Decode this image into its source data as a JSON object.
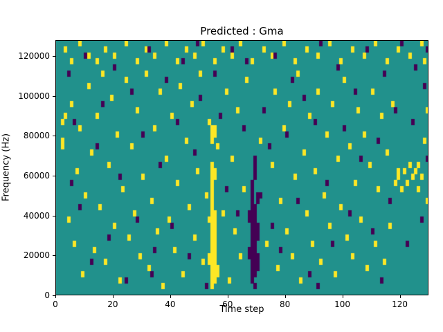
{
  "chart_data": {
    "type": "heatmap",
    "title": "Predicted : Gma",
    "xlabel": "Time step",
    "ylabel": "Frequency (Hz)",
    "x_range": [
      0,
      130
    ],
    "y_range": [
      0,
      128000
    ],
    "x_ticks": [
      0,
      20,
      40,
      60,
      80,
      100,
      120
    ],
    "y_ticks": [
      0,
      20000,
      40000,
      60000,
      80000,
      100000,
      120000
    ],
    "grid": {
      "cols": 130,
      "rows": 42
    },
    "legend": "none",
    "colormap": {
      "name": "viridis-discrete",
      "background": "#21918c",
      "low": "#440154",
      "high": "#fde725"
    },
    "cells": {
      "yellow": [
        [
          54,
          1
        ],
        [
          54,
          2
        ],
        [
          54,
          3
        ],
        [
          54,
          4
        ],
        [
          54,
          5
        ],
        [
          54,
          6
        ],
        [
          54,
          7
        ],
        [
          54,
          8
        ],
        [
          54,
          9
        ],
        [
          54,
          10
        ],
        [
          54,
          11
        ],
        [
          54,
          12
        ],
        [
          54,
          13
        ],
        [
          54,
          14
        ],
        [
          54,
          15
        ],
        [
          54,
          16
        ],
        [
          54,
          17
        ],
        [
          54,
          18
        ],
        [
          54,
          19
        ],
        [
          54,
          20
        ],
        [
          54,
          21
        ],
        [
          54,
          25
        ],
        [
          54,
          26
        ],
        [
          54,
          27
        ],
        [
          55,
          2
        ],
        [
          55,
          3
        ],
        [
          55,
          4
        ],
        [
          55,
          5
        ],
        [
          55,
          6
        ],
        [
          55,
          7
        ],
        [
          55,
          8
        ],
        [
          55,
          9
        ],
        [
          55,
          10
        ],
        [
          55,
          11
        ],
        [
          55,
          12
        ],
        [
          55,
          13
        ],
        [
          55,
          19
        ],
        [
          55,
          20
        ],
        [
          55,
          26
        ],
        [
          55,
          27
        ],
        [
          53,
          5
        ],
        [
          53,
          6
        ],
        [
          53,
          12
        ],
        [
          56,
          3
        ],
        [
          56,
          4
        ],
        [
          3,
          40
        ],
        [
          5,
          38
        ],
        [
          8,
          41
        ],
        [
          11,
          39
        ],
        [
          14,
          38
        ],
        [
          17,
          40
        ],
        [
          20,
          39
        ],
        [
          24,
          41
        ],
        [
          28,
          38
        ],
        [
          31,
          40
        ],
        [
          34,
          39
        ],
        [
          38,
          41
        ],
        [
          42,
          38
        ],
        [
          45,
          40
        ],
        [
          48,
          39
        ],
        [
          51,
          41
        ],
        [
          55,
          38
        ],
        [
          58,
          40
        ],
        [
          61,
          39
        ],
        [
          64,
          41
        ],
        [
          68,
          38
        ],
        [
          72,
          40
        ],
        [
          75,
          39
        ],
        [
          79,
          41
        ],
        [
          83,
          38
        ],
        [
          87,
          40
        ],
        [
          91,
          39
        ],
        [
          95,
          41
        ],
        [
          99,
          38
        ],
        [
          103,
          40
        ],
        [
          107,
          39
        ],
        [
          111,
          41
        ],
        [
          115,
          38
        ],
        [
          119,
          40
        ],
        [
          123,
          39
        ],
        [
          127,
          41
        ],
        [
          128,
          38
        ],
        [
          2,
          24
        ],
        [
          2,
          25
        ],
        [
          2,
          28
        ],
        [
          3,
          29
        ],
        [
          4,
          12
        ],
        [
          5,
          31
        ],
        [
          6,
          8
        ],
        [
          7,
          20
        ],
        [
          8,
          27
        ],
        [
          9,
          3
        ],
        [
          10,
          16
        ],
        [
          11,
          34
        ],
        [
          12,
          23
        ],
        [
          13,
          7
        ],
        [
          14,
          29
        ],
        [
          15,
          14
        ],
        [
          16,
          36
        ],
        [
          17,
          5
        ],
        [
          18,
          21
        ],
        [
          19,
          32
        ],
        [
          20,
          11
        ],
        [
          21,
          26
        ],
        [
          22,
          2
        ],
        [
          23,
          17
        ],
        [
          24,
          35
        ],
        [
          25,
          9
        ],
        [
          26,
          24
        ],
        [
          27,
          13
        ],
        [
          28,
          30
        ],
        [
          29,
          6
        ],
        [
          30,
          19
        ],
        [
          31,
          36
        ],
        [
          32,
          4
        ],
        [
          33,
          15
        ],
        [
          34,
          27
        ],
        [
          35,
          10
        ],
        [
          36,
          33
        ],
        [
          37,
          1
        ],
        [
          38,
          22
        ],
        [
          39,
          12
        ],
        [
          40,
          29
        ],
        [
          41,
          7
        ],
        [
          42,
          18
        ],
        [
          43,
          34
        ],
        [
          44,
          3
        ],
        [
          45,
          25
        ],
        [
          46,
          14
        ],
        [
          47,
          31
        ],
        [
          48,
          9
        ],
        [
          49,
          20
        ],
        [
          50,
          36
        ],
        [
          51,
          5
        ],
        [
          52,
          16
        ],
        [
          53,
          28
        ],
        [
          56,
          24
        ],
        [
          58,
          13
        ],
        [
          59,
          33
        ],
        [
          60,
          2
        ],
        [
          61,
          22
        ],
        [
          62,
          10
        ],
        [
          63,
          30
        ],
        [
          64,
          6
        ],
        [
          65,
          17
        ],
        [
          66,
          35
        ],
        [
          67,
          12
        ],
        [
          71,
          25
        ],
        [
          73,
          8
        ],
        [
          75,
          21
        ],
        [
          76,
          33
        ],
        [
          77,
          4
        ],
        [
          78,
          15
        ],
        [
          79,
          27
        ],
        [
          80,
          10
        ],
        [
          81,
          31
        ],
        [
          82,
          6
        ],
        [
          83,
          19
        ],
        [
          84,
          36
        ],
        [
          85,
          2
        ],
        [
          86,
          23
        ],
        [
          87,
          13
        ],
        [
          88,
          29
        ],
        [
          89,
          8
        ],
        [
          90,
          20
        ],
        [
          91,
          33
        ],
        [
          92,
          5
        ],
        [
          93,
          16
        ],
        [
          94,
          26
        ],
        [
          95,
          11
        ],
        [
          96,
          31
        ],
        [
          97,
          3
        ],
        [
          98,
          22
        ],
        [
          99,
          14
        ],
        [
          100,
          35
        ],
        [
          101,
          9
        ],
        [
          102,
          24
        ],
        [
          103,
          6
        ],
        [
          104,
          18
        ],
        [
          105,
          30
        ],
        [
          106,
          12
        ],
        [
          107,
          26
        ],
        [
          108,
          4
        ],
        [
          109,
          21
        ],
        [
          110,
          33
        ],
        [
          111,
          8
        ],
        [
          112,
          17
        ],
        [
          113,
          29
        ],
        [
          114,
          5
        ],
        [
          115,
          23
        ],
        [
          116,
          11
        ],
        [
          117,
          31
        ],
        [
          118,
          18
        ],
        [
          119,
          19
        ],
        [
          119,
          20
        ],
        [
          120,
          17
        ],
        [
          121,
          20
        ],
        [
          122,
          18
        ],
        [
          123,
          21
        ],
        [
          124,
          19
        ],
        [
          125,
          20
        ],
        [
          126,
          17
        ],
        [
          126,
          21
        ],
        [
          127,
          19
        ],
        [
          128,
          25
        ],
        [
          129,
          15
        ],
        [
          129,
          30
        ]
      ],
      "purple": [
        [
          67,
          6
        ],
        [
          67,
          7
        ],
        [
          67,
          12
        ],
        [
          67,
          13
        ],
        [
          68,
          2
        ],
        [
          68,
          3
        ],
        [
          68,
          4
        ],
        [
          68,
          5
        ],
        [
          68,
          6
        ],
        [
          68,
          7
        ],
        [
          68,
          8
        ],
        [
          68,
          9
        ],
        [
          68,
          10
        ],
        [
          68,
          11
        ],
        [
          68,
          12
        ],
        [
          68,
          13
        ],
        [
          68,
          14
        ],
        [
          68,
          15
        ],
        [
          68,
          16
        ],
        [
          68,
          17
        ],
        [
          68,
          18
        ],
        [
          69,
          1
        ],
        [
          69,
          3
        ],
        [
          69,
          4
        ],
        [
          69,
          5
        ],
        [
          69,
          6
        ],
        [
          69,
          7
        ],
        [
          69,
          8
        ],
        [
          69,
          9
        ],
        [
          69,
          10
        ],
        [
          69,
          11
        ],
        [
          69,
          12
        ],
        [
          69,
          13
        ],
        [
          69,
          14
        ],
        [
          69,
          19
        ],
        [
          69,
          20
        ],
        [
          69,
          21
        ],
        [
          69,
          22
        ],
        [
          70,
          4
        ],
        [
          70,
          5
        ],
        [
          70,
          6
        ],
        [
          70,
          9
        ],
        [
          70,
          10
        ],
        [
          70,
          11
        ],
        [
          70,
          15
        ],
        [
          70,
          16
        ],
        [
          4,
          36
        ],
        [
          6,
          28
        ],
        [
          8,
          14
        ],
        [
          10,
          39
        ],
        [
          12,
          5
        ],
        [
          14,
          24
        ],
        [
          16,
          31
        ],
        [
          18,
          9
        ],
        [
          20,
          37
        ],
        [
          22,
          19
        ],
        [
          24,
          2
        ],
        [
          26,
          33
        ],
        [
          28,
          12
        ],
        [
          30,
          26
        ],
        [
          32,
          40
        ],
        [
          34,
          7
        ],
        [
          36,
          21
        ],
        [
          38,
          35
        ],
        [
          40,
          11
        ],
        [
          42,
          28
        ],
        [
          44,
          38
        ],
        [
          46,
          6
        ],
        [
          48,
          23
        ],
        [
          50,
          32
        ],
        [
          52,
          1
        ],
        [
          55,
          36
        ],
        [
          57,
          29
        ],
        [
          59,
          17
        ],
        [
          61,
          40
        ],
        [
          63,
          13
        ],
        [
          65,
          27
        ],
        [
          66,
          38
        ],
        [
          71,
          16
        ],
        [
          72,
          30
        ],
        [
          74,
          24
        ],
        [
          75,
          11
        ],
        [
          76,
          39
        ],
        [
          78,
          7
        ],
        [
          80,
          26
        ],
        [
          82,
          35
        ],
        [
          84,
          15
        ],
        [
          86,
          32
        ],
        [
          88,
          3
        ],
        [
          90,
          28
        ],
        [
          92,
          41
        ],
        [
          94,
          18
        ],
        [
          96,
          8
        ],
        [
          98,
          37
        ],
        [
          100,
          27
        ],
        [
          102,
          13
        ],
        [
          104,
          33
        ],
        [
          106,
          22
        ],
        [
          108,
          40
        ],
        [
          110,
          10
        ],
        [
          112,
          25
        ],
        [
          114,
          36
        ],
        [
          116,
          15
        ],
        [
          118,
          30
        ],
        [
          120,
          41
        ],
        [
          122,
          8
        ],
        [
          124,
          28
        ],
        [
          125,
          37
        ],
        [
          127,
          12
        ],
        [
          128,
          34
        ],
        [
          129,
          22
        ],
        [
          129,
          40
        ],
        [
          5,
          18
        ],
        [
          33,
          3
        ],
        [
          49,
          41
        ],
        [
          91,
          1
        ],
        [
          113,
          2
        ]
      ]
    }
  }
}
